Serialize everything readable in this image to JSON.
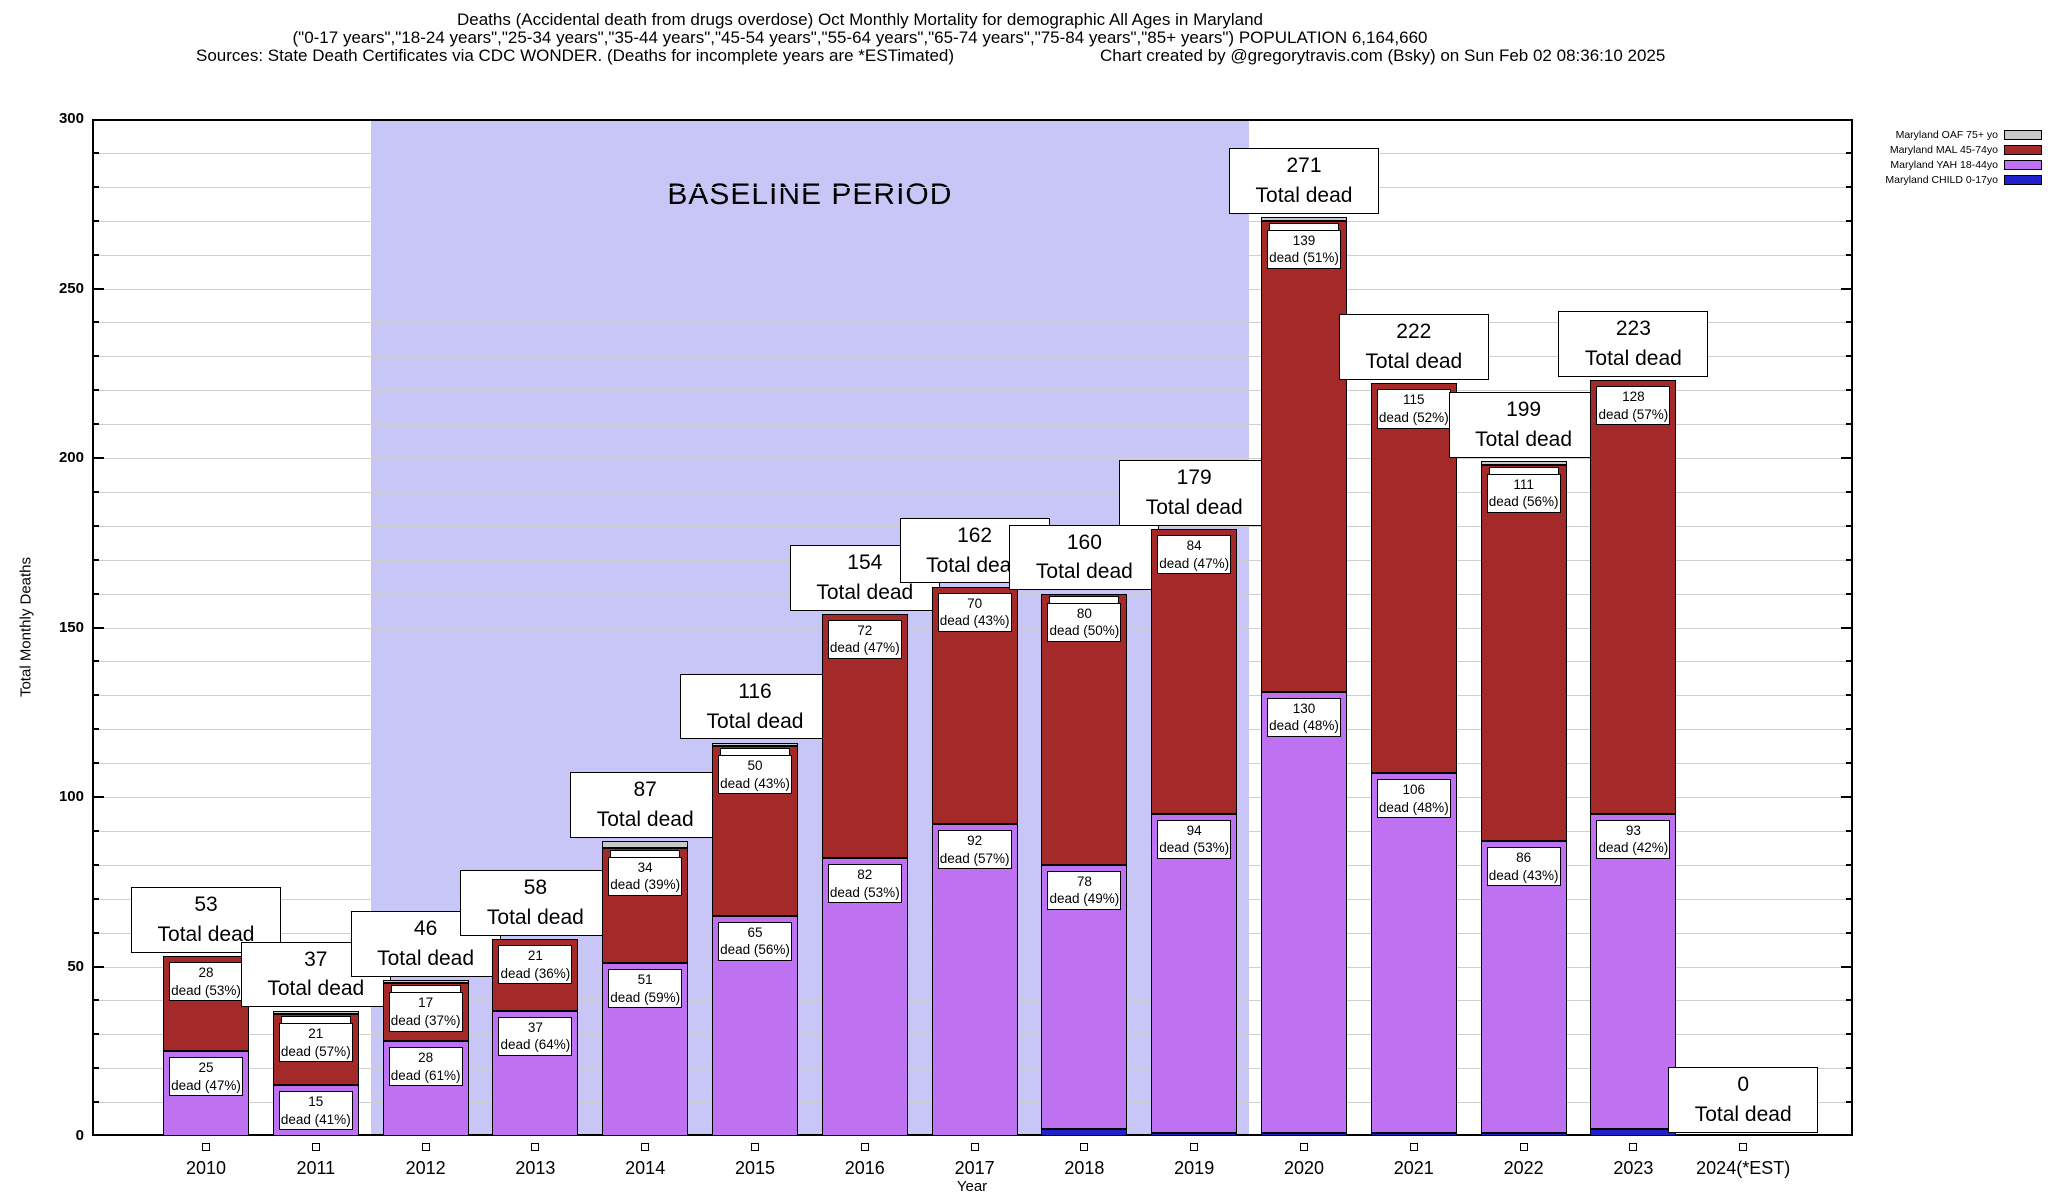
{
  "header": {
    "title_line1": "Deaths (Accidental death from drugs overdose) Oct Monthly Mortality for demographic All Ages in Maryland",
    "title_line2": "(\"0-17 years\",\"18-24 years\",\"25-34 years\",\"35-44 years\",\"45-54 years\",\"55-64 years\",\"65-74 years\",\"75-84 years\",\"85+ years\") POPULATION 6,164,660",
    "sources": "Sources: State Death Certificates via CDC WONDER. (Deaths for incomplete years are *ESTimated)",
    "credit": "Chart created by @gregorytravis.com (Bsky) on Sun Feb 02 08:36:10 2025"
  },
  "legend": {
    "items": [
      {
        "label": "Maryland OAF 75+ yo",
        "color": "#c8c8c8"
      },
      {
        "label": "Maryland MAL 45-74yo",
        "color": "#a42a2a"
      },
      {
        "label": "Maryland YAH 18-44yo",
        "color": "#be72f2"
      },
      {
        "label": "Maryland CHILD 0-17yo",
        "color": "#2121cc"
      }
    ]
  },
  "chart_data": {
    "type": "bar",
    "stacked": true,
    "title": "Deaths (Accidental death from drugs overdose) Oct Monthly Mortality for demographic All Ages in Maryland",
    "xlabel": "Year",
    "ylabel": "Total Monthly Deaths",
    "ylim": [
      0,
      300
    ],
    "ytick_step": 50,
    "grid_step": 10,
    "grid_on": true,
    "legend_position": "top-right-outside",
    "categories": [
      "2010",
      "2011",
      "2012",
      "2013",
      "2014",
      "2015",
      "2016",
      "2017",
      "2018",
      "2019",
      "2020",
      "2021",
      "2022",
      "2023",
      "2024(*EST)"
    ],
    "series": [
      {
        "name": "Maryland CHILD 0-17yo",
        "color": "#2121cc",
        "values": [
          0,
          0,
          0,
          0,
          0,
          0,
          0,
          0,
          2,
          1,
          1,
          1,
          1,
          2,
          0
        ]
      },
      {
        "name": "Maryland YAH 18-44yo",
        "color": "#be72f2",
        "values": [
          25,
          15,
          28,
          37,
          51,
          65,
          82,
          92,
          78,
          94,
          130,
          106,
          86,
          93,
          0
        ]
      },
      {
        "name": "Maryland MAL 45-74yo",
        "color": "#a42a2a",
        "values": [
          28,
          21,
          17,
          21,
          34,
          50,
          72,
          70,
          80,
          84,
          139,
          115,
          111,
          128,
          0
        ]
      },
      {
        "name": "Maryland OAF 75+ yo",
        "color": "#c8c8c8",
        "values": [
          0,
          1,
          1,
          0,
          2,
          1,
          0,
          0,
          0,
          0,
          1,
          0,
          1,
          0,
          0
        ]
      }
    ],
    "totals": [
      53,
      37,
      46,
      58,
      87,
      116,
      154,
      162,
      160,
      179,
      271,
      222,
      199,
      223,
      0
    ],
    "total_label_text": "Total dead",
    "segment_label_format": "dead ({pct}%)",
    "segment_labels": {
      "mal_values": [
        28,
        21,
        17,
        21,
        34,
        50,
        72,
        70,
        80,
        84,
        139,
        115,
        111,
        128,
        null
      ],
      "mal_pct": [
        53,
        57,
        37,
        36,
        39,
        43,
        47,
        43,
        50,
        47,
        51,
        52,
        56,
        57,
        null
      ],
      "yah_values": [
        25,
        15,
        28,
        37,
        51,
        65,
        82,
        92,
        78,
        94,
        130,
        106,
        86,
        93,
        null
      ],
      "yah_pct": [
        47,
        41,
        61,
        64,
        59,
        56,
        53,
        57,
        49,
        53,
        48,
        48,
        43,
        42,
        null
      ]
    },
    "hidden_overlap_label_years": [
      "2011",
      "2012",
      "2014",
      "2015",
      "2018",
      "2020",
      "2022"
    ],
    "baseline_period": {
      "label": "BASELINE PERIOD",
      "from_year": "2012",
      "to_year": "2019",
      "color": "#c8c6f6"
    }
  }
}
